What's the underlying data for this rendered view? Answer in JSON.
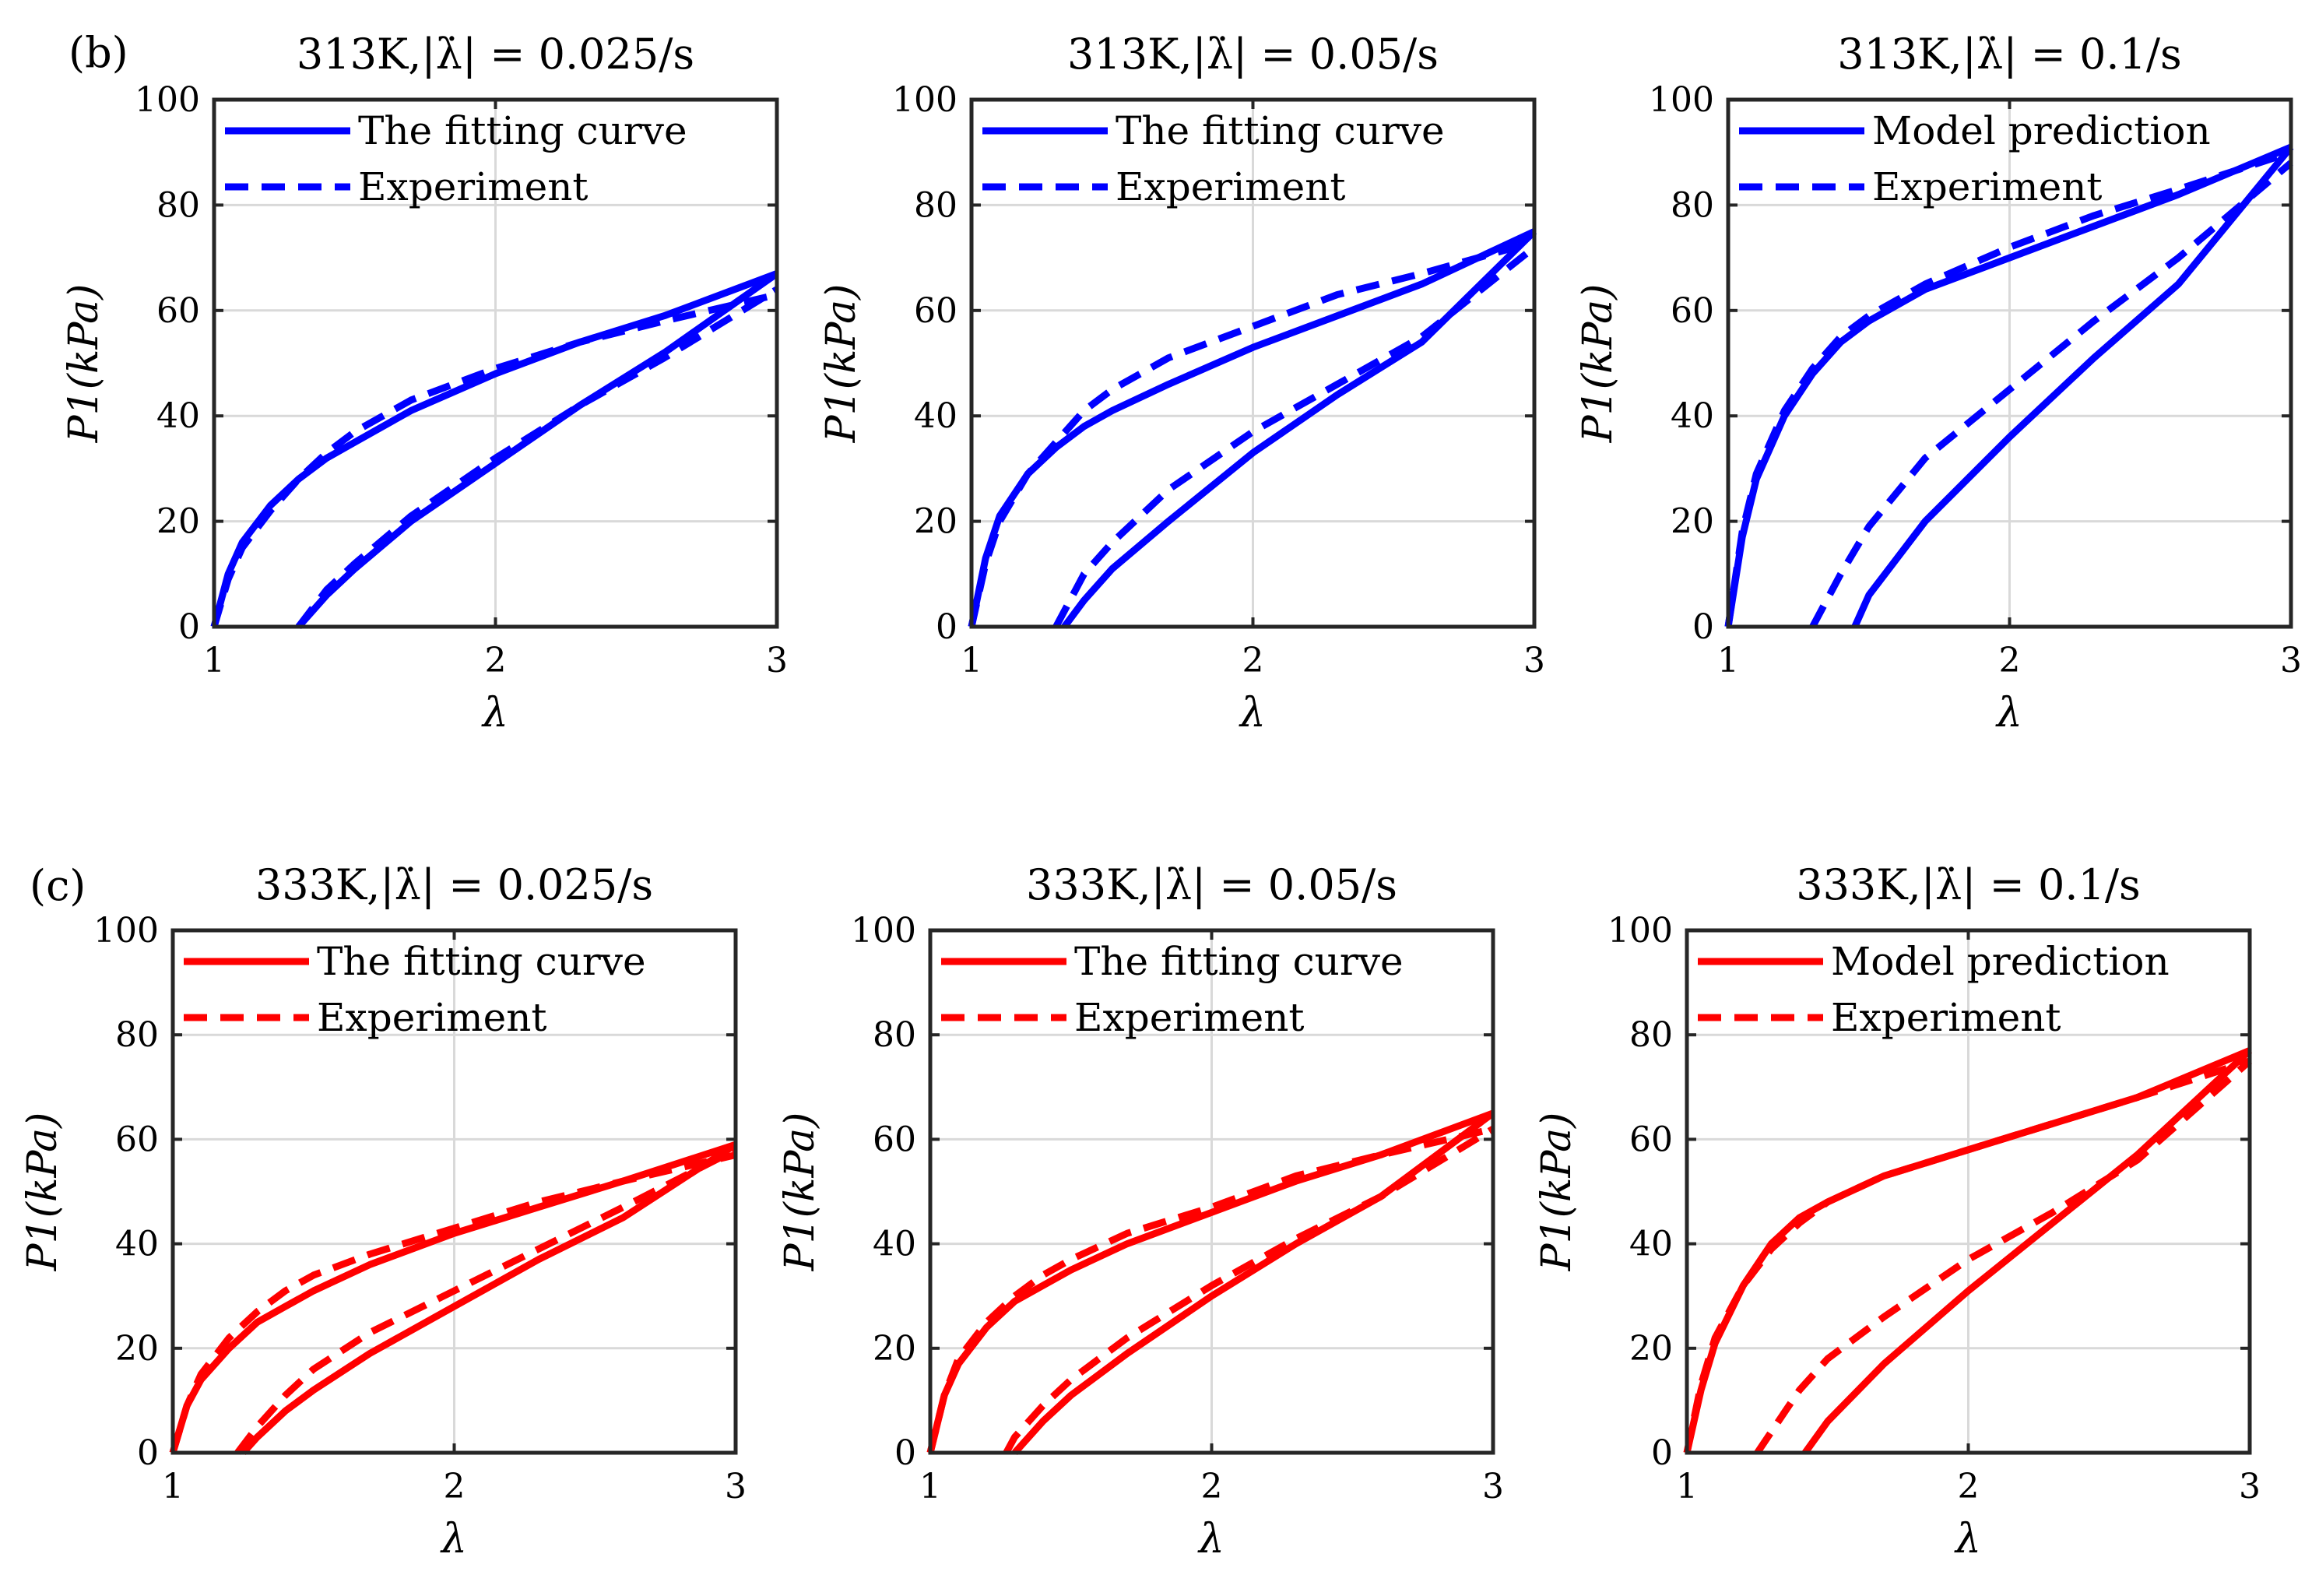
{
  "rows": [
    {
      "label": "(b)",
      "color": "#0000ff",
      "panels": [
        {
          "title": "313K,|λ̇| = 0.025/s",
          "legend": [
            "The fitting curve",
            "Experiment"
          ],
          "xlabel": "λ",
          "ylabel": "P1(kPa)",
          "chart_data": {
            "type": "line",
            "xlim": [
              1,
              3
            ],
            "ylim": [
              0,
              100
            ],
            "xticks": [
              1,
              2,
              3
            ],
            "yticks": [
              0,
              20,
              40,
              60,
              80,
              100
            ],
            "series": [
              {
                "name": "The fitting curve",
                "style": "solid",
                "x": [
                  1,
                  1.05,
                  1.1,
                  1.2,
                  1.3,
                  1.4,
                  1.5,
                  1.7,
                  2.0,
                  2.3,
                  2.6,
                  3.0
                ],
                "y": [
                  0,
                  10,
                  16,
                  23,
                  28,
                  32,
                  35,
                  41,
                  48,
                  54,
                  59,
                  67
                ]
              },
              {
                "name": "The fitting curve",
                "style": "solid",
                "x": [
                  1.3,
                  1.4,
                  1.5,
                  1.7,
                  2.0,
                  2.3,
                  2.6,
                  3.0
                ],
                "y": [
                  0,
                  6,
                  11,
                  20,
                  31,
                  42,
                  52,
                  67
                ]
              },
              {
                "name": "Experiment",
                "style": "dashed",
                "x": [
                  1,
                  1.05,
                  1.1,
                  1.2,
                  1.3,
                  1.4,
                  1.5,
                  1.7,
                  2.0,
                  2.3,
                  2.6,
                  3.0
                ],
                "y": [
                  0,
                  9,
                  15,
                  22,
                  28,
                  33,
                  37,
                  43,
                  49,
                  54,
                  58,
                  63
                ]
              },
              {
                "name": "Experiment",
                "style": "dashed",
                "x": [
                  1.3,
                  1.4,
                  1.5,
                  1.7,
                  2.0,
                  2.3,
                  2.6,
                  3.0
                ],
                "y": [
                  0,
                  7,
                  12,
                  21,
                  32,
                  42,
                  51,
                  64
                ]
              }
            ]
          }
        },
        {
          "title": "313K,|λ̇| = 0.05/s",
          "legend": [
            "The fitting curve",
            "Experiment"
          ],
          "xlabel": "λ",
          "ylabel": "P1(kPa)",
          "chart_data": {
            "type": "line",
            "xlim": [
              1,
              3
            ],
            "ylim": [
              0,
              100
            ],
            "xticks": [
              1,
              2,
              3
            ],
            "yticks": [
              0,
              20,
              40,
              60,
              80,
              100
            ],
            "series": [
              {
                "name": "The fitting curve",
                "style": "solid",
                "x": [
                  1,
                  1.05,
                  1.1,
                  1.2,
                  1.3,
                  1.4,
                  1.5,
                  1.7,
                  2.0,
                  2.3,
                  2.6,
                  3.0
                ],
                "y": [
                  0,
                  13,
                  21,
                  29,
                  34,
                  38,
                  41,
                  46,
                  53,
                  59,
                  65,
                  75
                ]
              },
              {
                "name": "The fitting curve",
                "style": "solid",
                "x": [
                  1.33,
                  1.4,
                  1.5,
                  1.7,
                  2.0,
                  2.3,
                  2.6,
                  3.0
                ],
                "y": [
                  0,
                  5,
                  11,
                  20,
                  33,
                  44,
                  54,
                  75
                ]
              },
              {
                "name": "Experiment",
                "style": "dashed",
                "x": [
                  1,
                  1.05,
                  1.1,
                  1.2,
                  1.3,
                  1.4,
                  1.5,
                  1.7,
                  2.0,
                  2.3,
                  2.6,
                  3.0
                ],
                "y": [
                  0,
                  12,
                  20,
                  29,
                  35,
                  41,
                  45,
                  51,
                  57,
                  63,
                  67,
                  73
                ]
              },
              {
                "name": "Experiment",
                "style": "dashed",
                "x": [
                  1.3,
                  1.4,
                  1.5,
                  1.7,
                  2.0,
                  2.3,
                  2.6,
                  3.0
                ],
                "y": [
                  0,
                  10,
                  16,
                  26,
                  37,
                  46,
                  55,
                  72
                ]
              }
            ]
          }
        },
        {
          "title": "313K,|λ̇| = 0.1/s",
          "legend": [
            "Model prediction",
            "Experiment"
          ],
          "xlabel": "λ",
          "ylabel": "P1(kPa)",
          "chart_data": {
            "type": "line",
            "xlim": [
              1,
              3
            ],
            "ylim": [
              0,
              100
            ],
            "xticks": [
              1,
              2,
              3
            ],
            "yticks": [
              0,
              20,
              40,
              60,
              80,
              100
            ],
            "series": [
              {
                "name": "Model prediction",
                "style": "solid",
                "x": [
                  1,
                  1.05,
                  1.1,
                  1.2,
                  1.3,
                  1.4,
                  1.5,
                  1.7,
                  2.0,
                  2.3,
                  2.6,
                  3.0
                ],
                "y": [
                  0,
                  17,
                  28,
                  40,
                  48,
                  54,
                  58,
                  64,
                  70,
                  76,
                  82,
                  91
                ]
              },
              {
                "name": "Model prediction",
                "style": "solid",
                "x": [
                  1.45,
                  1.5,
                  1.7,
                  2.0,
                  2.3,
                  2.6,
                  3.0
                ],
                "y": [
                  0,
                  6,
                  20,
                  36,
                  51,
                  65,
                  91
                ]
              },
              {
                "name": "Experiment",
                "style": "dashed",
                "x": [
                  1,
                  1.05,
                  1.1,
                  1.2,
                  1.3,
                  1.4,
                  1.5,
                  1.7,
                  2.0,
                  2.3,
                  2.6,
                  3.0
                ],
                "y": [
                  0,
                  18,
                  29,
                  41,
                  49,
                  55,
                  59,
                  65,
                  72,
                  78,
                  83,
                  90
                ]
              },
              {
                "name": "Experiment",
                "style": "dashed",
                "x": [
                  1.3,
                  1.4,
                  1.5,
                  1.7,
                  2.0,
                  2.3,
                  2.6,
                  3.0
                ],
                "y": [
                  0,
                  10,
                  19,
                  32,
                  45,
                  58,
                  70,
                  88
                ]
              }
            ]
          }
        }
      ]
    },
    {
      "label": "(c)",
      "color": "#ff0000",
      "panels": [
        {
          "title": "333K,|λ̇| = 0.025/s",
          "legend": [
            "The fitting curve",
            "Experiment"
          ],
          "xlabel": "λ",
          "ylabel": "P1(kPa)",
          "chart_data": {
            "type": "line",
            "xlim": [
              1,
              3
            ],
            "ylim": [
              0,
              100
            ],
            "xticks": [
              1,
              2,
              3
            ],
            "yticks": [
              0,
              20,
              40,
              60,
              80,
              100
            ],
            "series": [
              {
                "name": "The fitting curve",
                "style": "solid",
                "x": [
                  1,
                  1.05,
                  1.1,
                  1.2,
                  1.3,
                  1.4,
                  1.5,
                  1.7,
                  2.0,
                  2.3,
                  2.6,
                  3.0
                ],
                "y": [
                  0,
                  9,
                  14,
                  20,
                  25,
                  28,
                  31,
                  36,
                  42,
                  47,
                  52,
                  59
                ]
              },
              {
                "name": "The fitting curve",
                "style": "solid",
                "x": [
                  1.25,
                  1.3,
                  1.4,
                  1.5,
                  1.7,
                  2.0,
                  2.3,
                  2.6,
                  3.0
                ],
                "y": [
                  0,
                  3,
                  8,
                  12,
                  19,
                  28,
                  37,
                  45,
                  59
                ]
              },
              {
                "name": "Experiment",
                "style": "dashed",
                "x": [
                  1,
                  1.05,
                  1.1,
                  1.2,
                  1.3,
                  1.4,
                  1.5,
                  1.7,
                  2.0,
                  2.3,
                  2.6,
                  3.0
                ],
                "y": [
                  0,
                  9,
                  15,
                  22,
                  27,
                  31,
                  34,
                  38,
                  43,
                  48,
                  52,
                  57
                ]
              },
              {
                "name": "Experiment",
                "style": "dashed",
                "x": [
                  1.23,
                  1.3,
                  1.4,
                  1.5,
                  1.7,
                  2.0,
                  2.3,
                  2.6,
                  3.0
                ],
                "y": [
                  0,
                  5,
                  11,
                  16,
                  23,
                  31,
                  39,
                  47,
                  58
                ]
              }
            ]
          }
        },
        {
          "title": "333K,|λ̇| = 0.05/s",
          "legend": [
            "The fitting curve",
            "Experiment"
          ],
          "xlabel": "λ",
          "ylabel": "P1(kPa)",
          "chart_data": {
            "type": "line",
            "xlim": [
              1,
              3
            ],
            "ylim": [
              0,
              100
            ],
            "xticks": [
              1,
              2,
              3
            ],
            "yticks": [
              0,
              20,
              40,
              60,
              80,
              100
            ],
            "series": [
              {
                "name": "The fitting curve",
                "style": "solid",
                "x": [
                  1,
                  1.05,
                  1.1,
                  1.2,
                  1.3,
                  1.4,
                  1.5,
                  1.7,
                  2.0,
                  2.3,
                  2.6,
                  3.0
                ],
                "y": [
                  0,
                  11,
                  17,
                  24,
                  29,
                  32,
                  35,
                  40,
                  46,
                  52,
                  57,
                  65
                ]
              },
              {
                "name": "The fitting curve",
                "style": "solid",
                "x": [
                  1.3,
                  1.4,
                  1.5,
                  1.7,
                  2.0,
                  2.3,
                  2.6,
                  3.0
                ],
                "y": [
                  0,
                  6,
                  11,
                  19,
                  30,
                  40,
                  49,
                  65
                ]
              },
              {
                "name": "Experiment",
                "style": "dashed",
                "x": [
                  1,
                  1.05,
                  1.1,
                  1.2,
                  1.3,
                  1.4,
                  1.5,
                  1.7,
                  2.0,
                  2.3,
                  2.6,
                  3.0
                ],
                "y": [
                  0,
                  11,
                  18,
                  25,
                  30,
                  34,
                  37,
                  42,
                  47,
                  53,
                  57,
                  62
                ]
              },
              {
                "name": "Experiment",
                "style": "dashed",
                "x": [
                  1.27,
                  1.3,
                  1.4,
                  1.5,
                  1.7,
                  2.0,
                  2.3,
                  2.6,
                  3.0
                ],
                "y": [
                  0,
                  3,
                  9,
                  14,
                  22,
                  32,
                  41,
                  49,
                  62
                ]
              }
            ]
          }
        },
        {
          "title": "333K,|λ̇| = 0.1/s",
          "legend": [
            "Model prediction",
            "Experiment"
          ],
          "xlabel": "λ",
          "ylabel": "P1(kPa)",
          "chart_data": {
            "type": "line",
            "xlim": [
              1,
              3
            ],
            "ylim": [
              0,
              100
            ],
            "xticks": [
              1,
              2,
              3
            ],
            "yticks": [
              0,
              20,
              40,
              60,
              80,
              100
            ],
            "series": [
              {
                "name": "Model prediction",
                "style": "solid",
                "x": [
                  1,
                  1.05,
                  1.1,
                  1.2,
                  1.3,
                  1.4,
                  1.5,
                  1.7,
                  2.0,
                  2.3,
                  2.6,
                  3.0
                ],
                "y": [
                  0,
                  12,
                  21,
                  32,
                  40,
                  45,
                  48,
                  53,
                  58,
                  63,
                  68,
                  77
                ]
              },
              {
                "name": "Model prediction",
                "style": "solid",
                "x": [
                  1.42,
                  1.5,
                  1.7,
                  2.0,
                  2.3,
                  2.6,
                  3.0
                ],
                "y": [
                  0,
                  6,
                  17,
                  31,
                  44,
                  57,
                  77
                ]
              },
              {
                "name": "Experiment",
                "style": "dashed",
                "x": [
                  1,
                  1.05,
                  1.1,
                  1.2,
                  1.3,
                  1.4,
                  1.5,
                  1.7,
                  2.0,
                  2.3,
                  2.6,
                  3.0
                ],
                "y": [
                  0,
                  13,
                  22,
                  32,
                  39,
                  44,
                  48,
                  53,
                  58,
                  63,
                  68,
                  75
                ]
              },
              {
                "name": "Experiment",
                "style": "dashed",
                "x": [
                  1.25,
                  1.3,
                  1.4,
                  1.5,
                  1.7,
                  2.0,
                  2.3,
                  2.6,
                  3.0
                ],
                "y": [
                  0,
                  4,
                  12,
                  18,
                  26,
                  37,
                  46,
                  56,
                  75
                ]
              }
            ]
          }
        }
      ]
    }
  ]
}
